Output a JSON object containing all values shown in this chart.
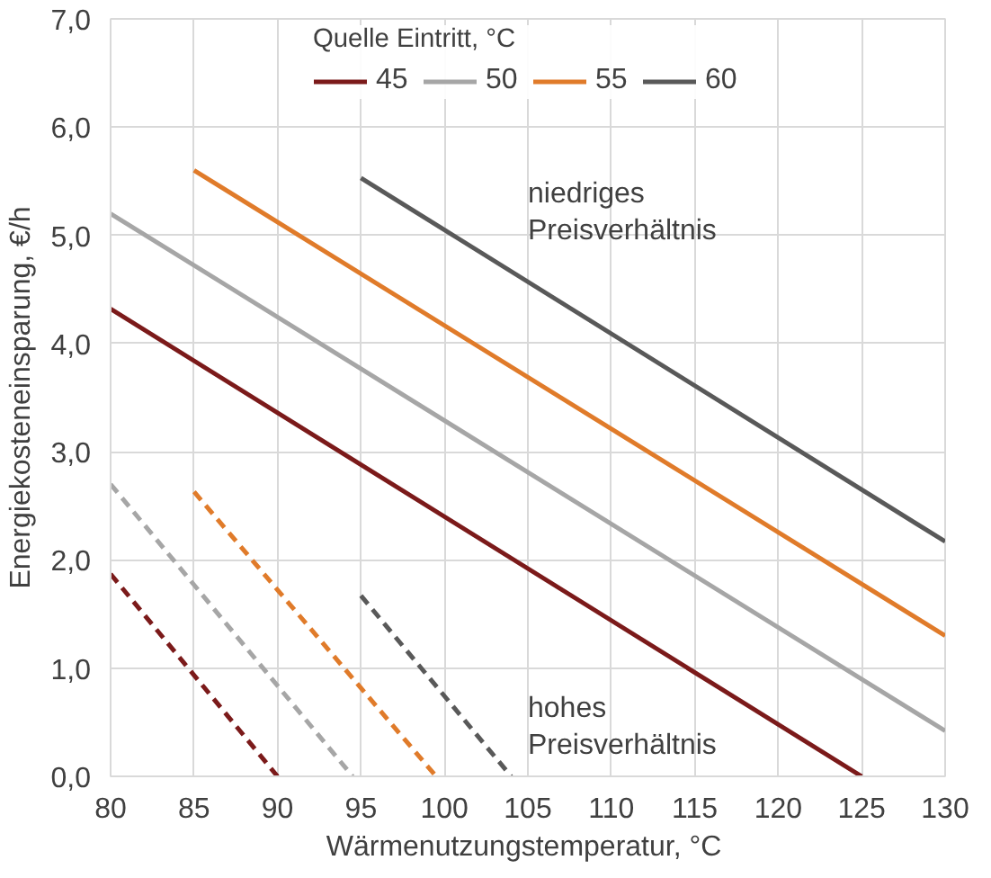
{
  "chart_data": {
    "type": "line",
    "xlabel": "Wärmenutzungstemperatur,  °C",
    "ylabel": "Energiekosteneinsparung, €/h",
    "legend_title": "Quelle Eintritt, °C",
    "xlim": [
      80,
      130
    ],
    "xticks": [
      80,
      85,
      90,
      95,
      100,
      105,
      110,
      115,
      120,
      125,
      130
    ],
    "ylim": [
      0,
      7
    ],
    "yticks": [
      {
        "value": 0,
        "label": "0,0"
      },
      {
        "value": 1,
        "label": "1,0"
      },
      {
        "value": 2,
        "label": "2,0"
      },
      {
        "value": 3,
        "label": "3,0"
      },
      {
        "value": 4,
        "label": "4,0"
      },
      {
        "value": 5,
        "label": "5,0"
      },
      {
        "value": 6,
        "label": "6,0"
      },
      {
        "value": 7,
        "label": "7,0"
      }
    ],
    "grid": true,
    "legend": "top",
    "line_style": "solid",
    "series": [
      {
        "name": "45",
        "color": "#7b1a1a",
        "x": [
          80,
          125
        ],
        "values": [
          4.32,
          0.0
        ]
      },
      {
        "name": "50",
        "color": "#a6a6a6",
        "x": [
          80,
          130
        ],
        "values": [
          5.2,
          0.42
        ]
      },
      {
        "name": "55",
        "color": "#e07b2a",
        "x": [
          85,
          130
        ],
        "values": [
          5.6,
          1.3
        ]
      },
      {
        "name": "60",
        "color": "#595959",
        "x": [
          95,
          130
        ],
        "values": [
          5.53,
          2.17
        ]
      },
      {
        "color": "#7b1a1a",
        "x": [
          80,
          90
        ],
        "values": [
          1.87,
          0.0
        ],
        "line_style": "dashed"
      },
      {
        "color": "#a6a6a6",
        "x": [
          80,
          94.5
        ],
        "values": [
          2.7,
          0.0
        ],
        "line_style": "dashed"
      },
      {
        "color": "#e07b2a",
        "x": [
          85,
          99.5
        ],
        "values": [
          2.63,
          0.0
        ],
        "line_style": "dashed"
      },
      {
        "color": "#595959",
        "x": [
          95,
          104
        ],
        "values": [
          1.67,
          0.0
        ],
        "line_style": "dashed"
      }
    ],
    "annotations": [
      "niedriges Preisverhältnis",
      "hohes Preisverhältnis"
    ]
  }
}
